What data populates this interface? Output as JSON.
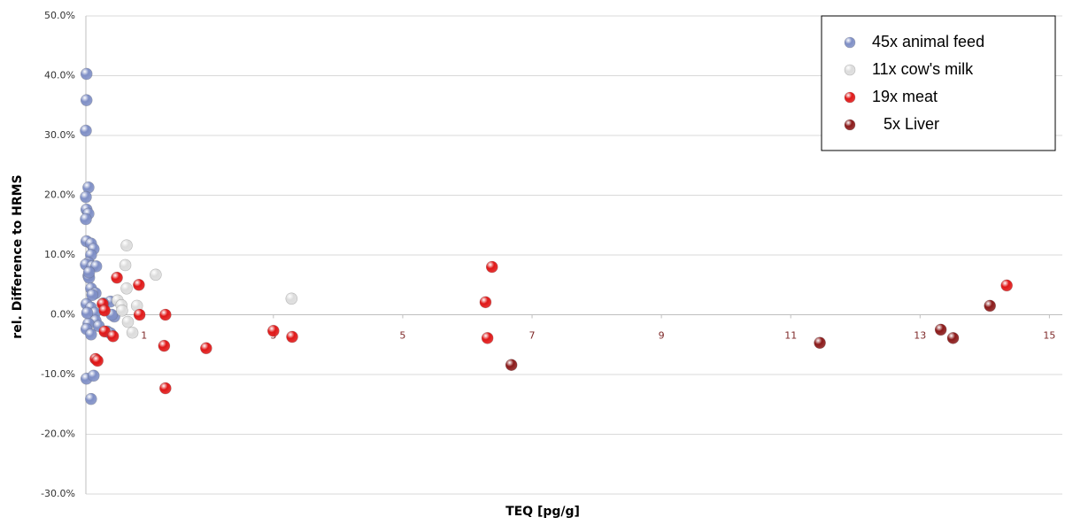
{
  "chart_data": {
    "type": "scatter",
    "x_label": "TEQ [pg/g]",
    "y_label": "rel. Difference to HRMS",
    "xlim": [
      0.1,
      15.2
    ],
    "xticks": [
      1,
      3,
      5,
      7,
      9,
      11,
      13,
      15
    ],
    "ylim": [
      -30,
      50
    ],
    "yticks": [
      {
        "value": -30,
        "label": "-30.0%"
      },
      {
        "value": -20,
        "label": "-20.0%"
      },
      {
        "value": -10,
        "label": "-10.0%"
      },
      {
        "value": 0,
        "label": "0.0%"
      },
      {
        "value": 10,
        "label": "10.0%"
      },
      {
        "value": 20,
        "label": "20.0%"
      },
      {
        "value": 30,
        "label": "30.0%"
      },
      {
        "value": 40,
        "label": "40.0%"
      },
      {
        "value": 50,
        "label": "50.0%"
      }
    ],
    "grid": true,
    "legend": "top-right",
    "series": [
      {
        "name": "45x animal feed",
        "color": "#7f8fc6",
        "x": [
          0.11,
          0.11,
          0.1,
          0.14,
          0.1,
          0.11,
          0.14,
          0.1,
          0.11,
          0.18,
          0.22,
          0.18,
          0.14,
          0.1,
          0.2,
          0.26,
          0.14,
          0.15,
          0.18,
          0.25,
          0.11,
          0.18,
          0.48,
          0.37,
          0.24,
          0.25,
          0.14,
          0.11,
          0.18,
          0.43,
          0.48,
          0.54,
          0.5,
          0.11,
          0.22,
          0.18,
          0.2,
          0.12,
          0.3,
          0.15
        ],
        "values": [
          40.3,
          35.9,
          30.8,
          21.3,
          19.7,
          17.6,
          16.9,
          16.0,
          12.3,
          11.9,
          11.0,
          10.0,
          8.7,
          8.4,
          8.1,
          8.1,
          6.5,
          6.2,
          4.4,
          3.6,
          1.8,
          1.2,
          2.2,
          1.9,
          0.3,
          -1.0,
          -1.5,
          -2.4,
          -3.3,
          -2.8,
          -3.1,
          -0.3,
          0.0,
          -10.7,
          -10.2,
          -14.1,
          3.3,
          0.3,
          -1.9,
          7.1
        ]
      },
      {
        "name": "11x cow's milk",
        "color": "#dcdcdc",
        "x": [
          0.73,
          0.71,
          1.18,
          0.73,
          0.59,
          0.65,
          0.89,
          0.66,
          0.75,
          0.82,
          3.28
        ],
        "values": [
          11.6,
          8.3,
          6.7,
          4.4,
          2.4,
          1.6,
          1.5,
          0.7,
          -1.2,
          -3.0,
          2.7
        ]
      },
      {
        "name": "19x meat",
        "color": "#e01818",
        "x": [
          0.58,
          0.92,
          0.36,
          0.39,
          0.93,
          1.33,
          0.39,
          0.52,
          1.31,
          1.96,
          1.33,
          0.25,
          3.0,
          3.29,
          6.38,
          6.28,
          6.31,
          14.34,
          0.28
        ],
        "values": [
          6.2,
          5.0,
          1.8,
          0.7,
          0.0,
          0.0,
          -2.8,
          -3.6,
          -5.2,
          -5.6,
          -12.3,
          -7.4,
          -2.7,
          -3.7,
          8.0,
          2.1,
          -3.9,
          4.9,
          -7.7
        ]
      },
      {
        "name": "5x Liver",
        "color": "#8b1a1a",
        "x": [
          6.68,
          11.45,
          13.32,
          13.51,
          14.08
        ],
        "values": [
          -8.4,
          -4.7,
          -2.5,
          -3.9,
          1.5
        ]
      }
    ]
  }
}
